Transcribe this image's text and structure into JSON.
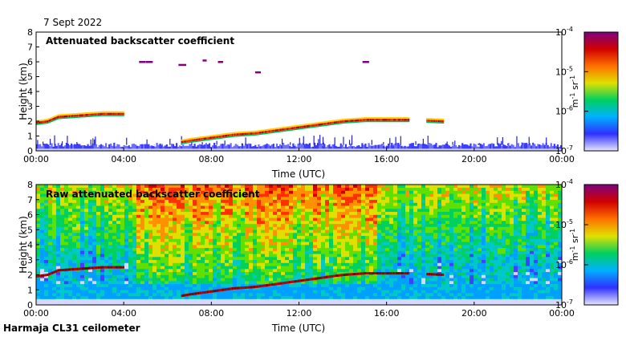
{
  "date": "7 Sept 2022",
  "instrument": "Harmaja CL31 ceilometer",
  "colorbar": {
    "ticks": [
      {
        "base": "10",
        "exp": "-4",
        "value": 0.0001
      },
      {
        "base": "10",
        "exp": "-5",
        "value": 1e-05
      },
      {
        "base": "10",
        "exp": "-6",
        "value": 1e-06
      },
      {
        "base": "10",
        "exp": "-7",
        "value": 1e-07
      }
    ],
    "unit_parts": [
      "m",
      "-1",
      " sr",
      "-1"
    ],
    "scale": "log",
    "colors": [
      "#e6e6ff",
      "#3030ff",
      "#00b0ff",
      "#00d060",
      "#e0e000",
      "#ff7000",
      "#d00000",
      "#800080"
    ]
  },
  "chart_data": [
    {
      "type": "heatmap",
      "title": "Attenuated backscatter coefficient",
      "xlabel": "Time (UTC)",
      "ylabel": "Height (km)",
      "xlim": [
        0,
        24
      ],
      "ylim": [
        0,
        8
      ],
      "xticks": [
        "00:00",
        "04:00",
        "08:00",
        "12:00",
        "16:00",
        "20:00",
        "00:00"
      ],
      "yticks": [
        "0",
        "1",
        "2",
        "3",
        "4",
        "5",
        "6",
        "7",
        "8"
      ],
      "cloud_base": [
        [
          0.0,
          1.9
        ],
        [
          0.5,
          2.0
        ],
        [
          1.0,
          2.3
        ],
        [
          2.0,
          2.4
        ],
        [
          3.0,
          2.5
        ],
        [
          4.0,
          2.5
        ],
        [
          6.6,
          0.6
        ],
        [
          7.0,
          0.7
        ],
        [
          8.0,
          0.9
        ],
        [
          9.0,
          1.1
        ],
        [
          10.0,
          1.2
        ],
        [
          11.0,
          1.4
        ],
        [
          12.0,
          1.6
        ],
        [
          13.0,
          1.8
        ],
        [
          14.0,
          2.0
        ],
        [
          15.0,
          2.1
        ],
        [
          16.0,
          2.1
        ],
        [
          17.0,
          2.1
        ],
        [
          17.8,
          2.05
        ],
        [
          18.6,
          2.0
        ]
      ],
      "upper_cloud": [
        [
          4.7,
          6.0
        ],
        [
          5.0,
          6.0
        ],
        [
          6.5,
          5.8
        ],
        [
          7.6,
          6.1
        ],
        [
          8.3,
          6.0
        ],
        [
          10.0,
          5.3
        ],
        [
          14.9,
          6.0
        ]
      ],
      "boundary_layer_top_km": 0.5
    },
    {
      "type": "heatmap",
      "title": "Raw attenuated backscatter coefficient",
      "xlabel": "Time (UTC)",
      "ylabel": "Height (km)",
      "xlim": [
        0,
        24
      ],
      "ylim": [
        0,
        8
      ],
      "xticks": [
        "00:00",
        "04:00",
        "08:00",
        "12:00",
        "16:00",
        "20:00",
        "00:00"
      ],
      "yticks": [
        "0",
        "1",
        "2",
        "3",
        "4",
        "5",
        "6",
        "7",
        "8"
      ],
      "cloud_base": [
        [
          0.0,
          1.9
        ],
        [
          0.5,
          2.0
        ],
        [
          1.0,
          2.3
        ],
        [
          2.0,
          2.4
        ],
        [
          3.0,
          2.5
        ],
        [
          4.0,
          2.5
        ],
        [
          6.6,
          0.6
        ],
        [
          7.0,
          0.7
        ],
        [
          8.0,
          0.9
        ],
        [
          9.0,
          1.1
        ],
        [
          10.0,
          1.2
        ],
        [
          11.0,
          1.4
        ],
        [
          12.0,
          1.6
        ],
        [
          13.0,
          1.8
        ],
        [
          14.0,
          2.0
        ],
        [
          15.0,
          2.1
        ],
        [
          16.0,
          2.1
        ],
        [
          17.0,
          2.1
        ],
        [
          17.8,
          2.05
        ],
        [
          18.6,
          2.0
        ]
      ],
      "noisy_band_hours": [
        4.5,
        15.5
      ]
    }
  ]
}
